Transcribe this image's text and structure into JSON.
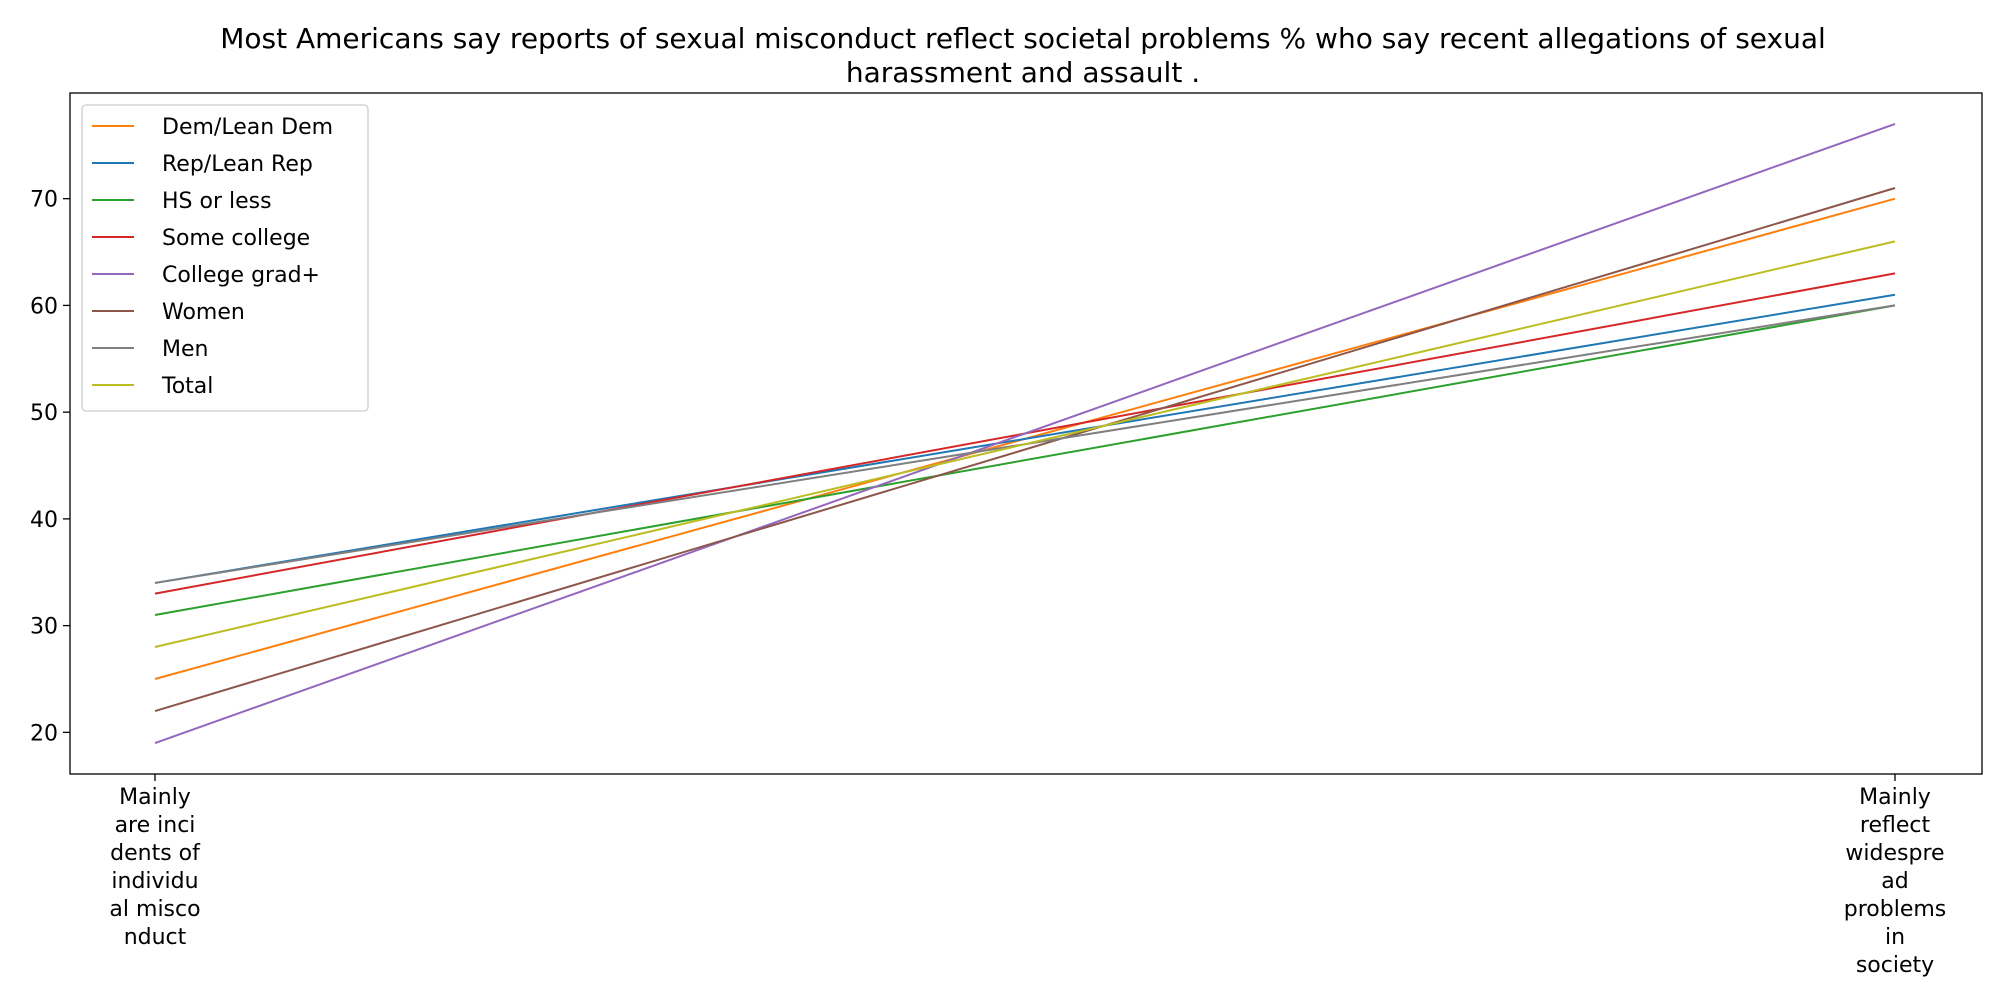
{
  "chart_data": {
    "type": "line",
    "title": "Most Americans say reports of sexual misconduct reflect societal problems % who say recent allegations of sexual harassment and assault .",
    "xlabel": "",
    "ylabel": "",
    "categories": [
      "Mainly are incidents of individual misconduct",
      "Mainly reflect widespread problems in society"
    ],
    "category_label_lines": [
      [
        "Mainly",
        "are inci",
        "dents of",
        "individu",
        "al misco",
        "nduct"
      ],
      [
        "Mainly",
        "reflect",
        "widespre",
        "ad",
        "problems",
        "in",
        "society"
      ]
    ],
    "ylim": [
      16.1,
      79.9
    ],
    "yticks": [
      20,
      30,
      40,
      50,
      60,
      70
    ],
    "grid": false,
    "legend": "top-left",
    "series": [
      {
        "name": "Dem/Lean Dem",
        "values": [
          25,
          70
        ],
        "color": "#ff7f0e"
      },
      {
        "name": "Rep/Lean Rep",
        "values": [
          34,
          61
        ],
        "color": "#1f77b4"
      },
      {
        "name": "HS or less",
        "values": [
          31,
          60
        ],
        "color": "#2ca02c"
      },
      {
        "name": "Some college",
        "values": [
          33,
          63
        ],
        "color": "#d62728"
      },
      {
        "name": "College grad+",
        "values": [
          19,
          77
        ],
        "color": "#9467bd"
      },
      {
        "name": "Women",
        "values": [
          22,
          71
        ],
        "color": "#8c564b"
      },
      {
        "name": "Men",
        "values": [
          34,
          60
        ],
        "color": "#7f7f7f"
      },
      {
        "name": "Total",
        "values": [
          28,
          66
        ],
        "color": "#bcbd22"
      }
    ]
  }
}
